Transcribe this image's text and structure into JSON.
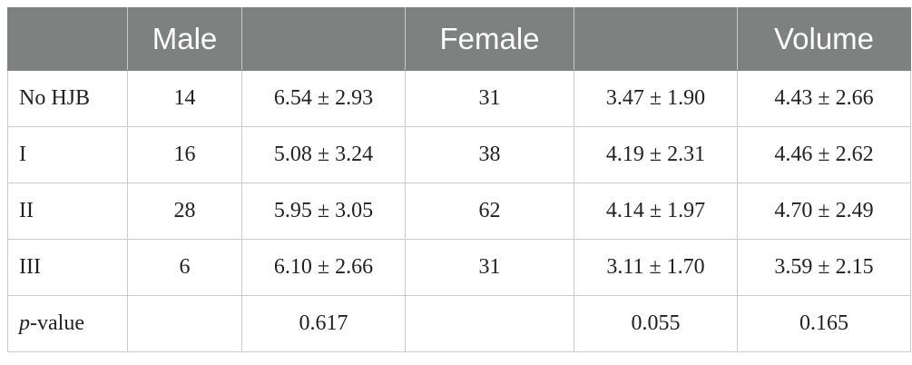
{
  "header": {
    "columns": [
      "",
      "Male",
      "",
      "Female",
      "",
      "Volume"
    ]
  },
  "rows": [
    {
      "label": "No HJB",
      "cells": [
        "14",
        "6.54 ± 2.93",
        "31",
        "3.47 ± 1.90",
        "4.43 ± 2.66"
      ]
    },
    {
      "label": "I",
      "cells": [
        "16",
        "5.08 ± 3.24",
        "38",
        "4.19 ± 2.31",
        "4.46 ± 2.62"
      ]
    },
    {
      "label": "II",
      "cells": [
        "28",
        "5.95 ± 3.05",
        "62",
        "4.14 ± 1.97",
        "4.70 ± 2.49"
      ]
    },
    {
      "label": "III",
      "cells": [
        "6",
        "6.10 ± 2.66",
        "31",
        "3.11 ± 1.70",
        "3.59 ± 2.15"
      ]
    }
  ],
  "pvalue_row": {
    "label_italic": "p",
    "label_rest": "-value",
    "cells": [
      "",
      "0.617",
      "",
      "0.055",
      "0.165"
    ]
  },
  "colors": {
    "header_bg": "#7f8180",
    "header_text": "#ffffff",
    "grid": "#c9cac9",
    "body_text": "#222222"
  }
}
